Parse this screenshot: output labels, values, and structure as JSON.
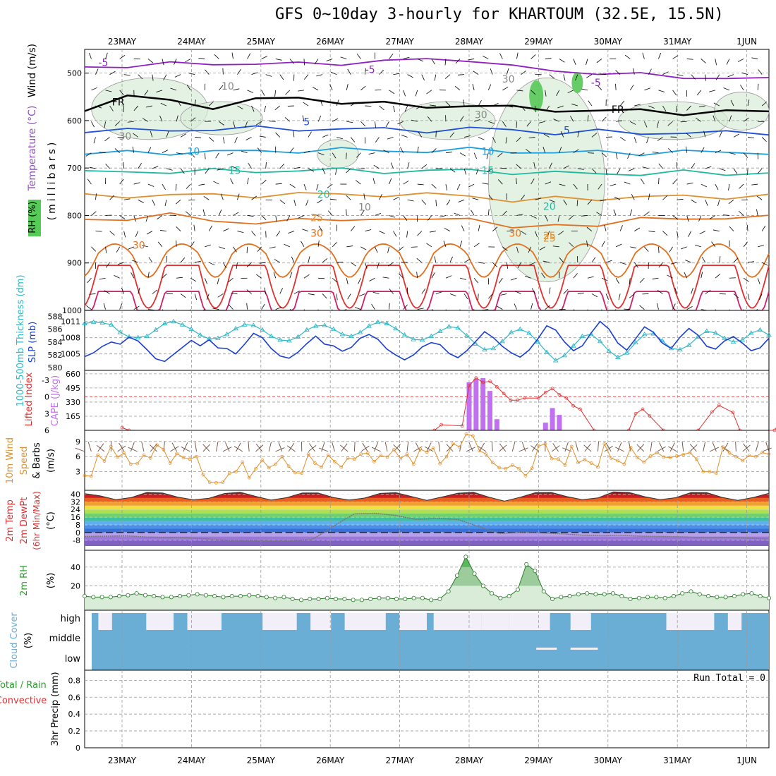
{
  "title": "GFS 0~10day 3-hourly for KHARTOUM (32.5E, 15.5N)",
  "colors": {
    "temp_blue": "#1e4fd6",
    "temp_cyan": "#1aa0e0",
    "temp_teal": "#20b8a0",
    "temp_orange": "#e09030",
    "temp_darkorange": "#e07020",
    "temp_red": "#e03030",
    "temp_magenta": "#d0206a",
    "purple": "#9020c0",
    "slp": "#1a3fd0",
    "thickness": "#30b8c8",
    "cape": "#c070f0",
    "lifted": "#e03030",
    "wind10": "#e0902a",
    "rh": "#2aa02a",
    "cloud": "#6aaed6"
  },
  "chart_data": [
    {
      "type": "line",
      "name": "upper-air-section",
      "ylabel": "(millibars)",
      "side_labels": [
        "Wind (m/s)",
        "Temperature (°C)",
        "RH (%)"
      ],
      "yticks": [
        "500",
        "600",
        "700",
        "800",
        "900",
        "1000"
      ],
      "ylim": [
        450,
        1000
      ],
      "contour_labels": [
        "-5",
        "-5",
        "-5",
        "FR",
        "FR",
        "5",
        "5",
        "10",
        "10",
        "15",
        "15",
        "20",
        "20",
        "25",
        "25",
        "30",
        "30",
        "25",
        "30",
        "10",
        "30",
        "30",
        "10",
        "30"
      ],
      "series": [
        {
          "name": "-5C",
          "level_mb": [
            487,
            484,
            482,
            479,
            480,
            482,
            478,
            475,
            472,
            470,
            488,
            495,
            499,
            505,
            507,
            511,
            514
          ]
        },
        {
          "name": "FR",
          "level_mb": [
            575,
            548,
            560,
            570,
            557,
            552,
            560,
            566,
            570,
            568,
            574,
            576,
            581,
            579,
            583,
            583,
            580
          ]
        },
        {
          "name": "5C",
          "level_mb": [
            620,
            622,
            620,
            618,
            617,
            617,
            618,
            619,
            620,
            618,
            620,
            625,
            624,
            626,
            625,
            627,
            625
          ]
        },
        {
          "name": "10C",
          "level_mb": [
            670,
            668,
            667,
            666,
            665,
            663,
            662,
            663,
            664,
            662,
            664,
            668,
            667,
            668,
            666,
            668,
            666
          ]
        },
        {
          "name": "15C",
          "level_mb": [
            710,
            708,
            707,
            707,
            706,
            705,
            705,
            706,
            707,
            705,
            708,
            712,
            711,
            712,
            710,
            711,
            710
          ]
        },
        {
          "name": "20C",
          "level_mb": [
            760,
            758,
            757,
            758,
            757,
            756,
            755,
            756,
            758,
            756,
            770,
            765,
            763,
            762,
            760,
            760,
            760
          ]
        },
        {
          "name": "25C",
          "level_mb": [
            810,
            805,
            800,
            810,
            815,
            812,
            806,
            808,
            812,
            800,
            830,
            820,
            818,
            810,
            805,
            805,
            805
          ]
        },
        {
          "name": "30C",
          "level_mb": [
            870,
            860,
            855,
            865,
            875,
            870,
            862,
            865,
            870,
            860,
            895,
            875,
            870,
            860,
            855,
            855,
            855
          ]
        }
      ]
    },
    {
      "type": "line",
      "name": "slp-thickness",
      "ylabel_left": "1000-500mb Thickness (dm)",
      "ylabel_right": "SLP (mb)",
      "yticks_left": [
        "580",
        "582",
        "584",
        "586",
        "588"
      ],
      "yticks_right": [
        "1005",
        "1008",
        "1011"
      ],
      "series": [
        {
          "name": "SLP (mb)",
          "values": [
            1004.5,
            1005.2,
            1006.4,
            1007.2,
            1006.8,
            1008.1,
            1007.4,
            1005.8,
            1004.1,
            1003.6,
            1004.9,
            1006.2,
            1007.5,
            1006.5,
            1007.6,
            1006.1,
            1006.0,
            1005.0,
            1006.8,
            1008.8,
            1008.0,
            1006.0,
            1004.6,
            1004.2,
            1005.3,
            1006.9,
            1008.3,
            1006.8,
            1006.5,
            1005.5,
            1006.2,
            1007.9,
            1008.6,
            1007.7,
            1005.9,
            1004.8,
            1003.9,
            1004.8,
            1006.3,
            1007.1,
            1006.7,
            1005.1,
            1004.3,
            1005.6,
            1007.3,
            1009.1,
            1008.0,
            1006.4,
            1005.2,
            1004.4,
            1005.7,
            1007.8,
            1010.2,
            1009.4,
            1007.2,
            1005.6,
            1006.5,
            1008.9,
            1011.0,
            1009.6,
            1007.0,
            1005.7,
            1007.8,
            1010.0,
            1009.0,
            1007.0,
            1006.0,
            1008.1,
            1009.7,
            1008.5,
            1006.4,
            1005.9,
            1007.4,
            1008.2,
            1007.0,
            1005.6,
            1006.1,
            1007.9
          ]
        },
        {
          "name": "1000-500mb Thickness (dm)",
          "values": [
            586.9,
            587.1,
            587.0,
            586.7,
            585.5,
            584.8,
            584.7,
            584.9,
            585.9,
            586.9,
            587.2,
            586.7,
            586.0,
            585.1,
            584.5,
            584.6,
            585.2,
            586.1,
            586.7,
            586.6,
            585.9,
            584.9,
            584.3,
            584.2,
            584.8,
            585.9,
            586.5,
            586.6,
            586.0,
            585.2,
            584.9,
            585.5,
            586.5,
            587.1,
            586.9,
            586.1,
            585.1,
            584.4,
            584.3,
            584.9,
            585.7,
            586.4,
            586.2,
            585.0,
            583.7,
            582.8,
            583.0,
            584.1,
            585.5,
            586.0,
            585.4,
            584.0,
            582.4,
            581.1,
            581.9,
            583.4,
            584.9,
            585.2,
            584.1,
            582.6,
            581.6,
            582.3,
            583.9,
            585.2,
            585.3,
            584.2,
            583.0,
            582.8,
            583.5,
            584.8,
            585.7,
            585.4,
            584.6,
            584.0,
            584.3,
            585.4,
            585.9,
            585.1
          ]
        }
      ]
    },
    {
      "type": "bar",
      "name": "cape-lifted-index",
      "ylabel_left": "Lifted Index",
      "ylabel_right": "CAPE (J/kg)",
      "yticks_left": [
        "-3",
        "0",
        "3",
        "6"
      ],
      "yticks_right": [
        "165",
        "330",
        "495",
        "660"
      ],
      "cape_values": [
        0,
        0,
        0,
        0,
        0,
        0,
        0,
        0,
        0,
        0,
        0,
        0,
        0,
        0,
        0,
        0,
        0,
        0,
        0,
        0,
        0,
        0,
        0,
        0,
        0,
        0,
        0,
        0,
        0,
        0,
        0,
        0,
        0,
        0,
        0,
        0,
        0,
        0,
        0,
        0,
        0,
        0,
        0,
        0,
        0,
        0,
        0,
        0,
        0,
        0,
        0,
        0,
        0,
        0,
        0,
        0,
        0,
        0,
        0,
        0,
        0,
        0,
        0,
        0,
        0,
        0,
        0,
        0,
        0,
        0,
        0,
        0,
        0,
        0,
        0,
        0,
        0,
        0,
        0,
        0,
        0,
        0,
        0,
        0,
        0,
        0,
        0,
        0,
        0,
        0,
        0,
        0,
        0,
        0,
        0,
        0,
        0,
        0,
        0,
        0,
        0,
        0,
        0,
        0,
        0,
        0,
        0,
        0,
        0,
        0,
        0,
        0,
        0,
        0,
        0,
        0,
        0,
        0,
        0,
        0,
        0,
        0,
        0,
        0,
        0,
        0,
        0,
        0,
        0,
        0,
        0,
        0,
        0,
        0,
        0,
        0,
        0,
        0,
        0,
        0,
        0,
        0,
        0,
        0,
        0,
        0,
        0,
        0,
        0,
        0,
        0,
        0,
        0,
        0,
        0,
        0,
        0,
        0,
        0,
        0
      ],
      "cape_bars": [
        [
          5.0,
          560
        ],
        [
          5.1,
          600
        ],
        [
          5.2,
          610
        ],
        [
          5.3,
          460
        ],
        [
          5.4,
          130
        ],
        [
          6.1,
          90
        ],
        [
          6.2,
          260
        ],
        [
          6.3,
          180
        ]
      ],
      "lifted_index": [
        [
          0.0,
          5.5
        ],
        [
          0.1,
          6.2
        ],
        [
          4.5,
          6.2
        ],
        [
          4.6,
          5.0
        ],
        [
          4.9,
          5.2
        ],
        [
          5.0,
          -2.0
        ],
        [
          5.1,
          -3.4
        ],
        [
          5.2,
          -2.6
        ],
        [
          5.3,
          -2.8
        ],
        [
          5.4,
          -1.8
        ],
        [
          5.5,
          -0.6
        ],
        [
          5.6,
          0.6
        ],
        [
          5.7,
          0.6
        ],
        [
          5.8,
          0.2
        ],
        [
          6.0,
          0.2
        ],
        [
          6.1,
          -0.8
        ],
        [
          6.2,
          -1.5
        ],
        [
          6.3,
          -0.4
        ],
        [
          6.4,
          0.2
        ],
        [
          6.5,
          1.6
        ],
        [
          6.6,
          2.2
        ],
        [
          6.8,
          6.1
        ],
        [
          7.3,
          6.2
        ],
        [
          7.4,
          3.0
        ],
        [
          7.5,
          2.2
        ],
        [
          7.6,
          3.4
        ],
        [
          7.8,
          6.2
        ],
        [
          8.3,
          6.2
        ],
        [
          8.5,
          2.7
        ],
        [
          8.6,
          1.5
        ],
        [
          8.8,
          2.8
        ],
        [
          8.9,
          6.2
        ],
        [
          9.4,
          6.2
        ],
        [
          9.6,
          2.3
        ],
        [
          9.7,
          1.8
        ],
        [
          9.8,
          3.2
        ],
        [
          9.9,
          4.0
        ],
        [
          10.0,
          5.2
        ],
        [
          10.25,
          6.2
        ]
      ]
    },
    {
      "type": "line",
      "name": "wind10m",
      "ylabel": "10m Wind Speed & Barbs (m/s)",
      "yticks": [
        "3",
        "6",
        "9"
      ],
      "series": [
        {
          "name": "10m Wind Speed (m/s)",
          "values": [
            2.2,
            2.1,
            6.3,
            5.1,
            8.0,
            5.9,
            6.7,
            4.5,
            4.6,
            6.3,
            5.7,
            8.3,
            7.4,
            4.7,
            6.6,
            5.8,
            5.5,
            6.0,
            2.4,
            0.9,
            0.8,
            0.9,
            2.7,
            3.0,
            4.9,
            1.8,
            3.6,
            5.3,
            3.8,
            4.5,
            6.0,
            4.1,
            2.8,
            2.7,
            6.5,
            4.7,
            3.9,
            6.3,
            5.0,
            3.9,
            5.7,
            5.5,
            6.5,
            6.7,
            5.0,
            6.2,
            5.9,
            7.4,
            5.6,
            6.5,
            4.5,
            7.5,
            6.9,
            7.7,
            4.6,
            6.0,
            8.6,
            7.9,
            10.5,
            10.1,
            7.2,
            6.5,
            4.8,
            3.8,
            3.6,
            4.3,
            3.6,
            2.2,
            3.7,
            8.1,
            8.5,
            5.6,
            5.5,
            4.3,
            8.0,
            4.8,
            5.4,
            4.7,
            3.9,
            8.5,
            5.7,
            5.2,
            4.5,
            7.8,
            5.8,
            4.9,
            6.1,
            6.8,
            5.9,
            5.8,
            6.1,
            6.4,
            6.8,
            5.5,
            3.0,
            3.0,
            2.7,
            7.9,
            6.7,
            6.0,
            5.2,
            6.2,
            6.0,
            6.8,
            6.5
          ]
        }
      ]
    },
    {
      "type": "area",
      "name": "temp-dewpoint",
      "ylabel": "2m Temp 2m DewPt (6hr Min/Max) (°C)",
      "yticks": [
        "-8",
        "0",
        "8",
        "16",
        "24",
        "32",
        "40"
      ],
      "series": [
        {
          "name": "2m Temp max",
          "values": [
            40.5,
            38.2,
            34.3,
            36.5,
            41.8,
            41.2,
            36.9,
            34.1,
            35.8,
            40.7,
            42.0,
            37.7,
            33.9,
            36.4,
            41.3,
            41.3,
            36.5,
            33.9,
            35.9,
            40.8,
            41.6,
            37.6,
            33.6,
            37.1,
            41.0,
            42.0,
            36.9,
            32.8,
            36.8,
            41.6,
            41.8,
            37.5,
            34.3,
            36.1,
            42.4,
            41.8,
            37.4,
            34.2,
            36.3,
            41.7,
            41.6,
            36.6,
            33.6,
            36.6,
            40.9
          ]
        },
        {
          "name": "2m DewPt",
          "values": [
            -4.0,
            -3.7,
            -3.4,
            -4.6,
            -5.1,
            -5.5,
            -6.8,
            -8.1,
            -8.3,
            -8.6,
            -8.4,
            -7.0,
            6.6,
            19.5,
            20.1,
            17.8,
            13.7,
            14.6,
            13.6,
            6.3,
            -1.0,
            0.1,
            -0.4,
            -1.3,
            -2.8,
            -3.3,
            -3.0,
            -3.8,
            -4.1,
            -4.5,
            -5.4,
            -5.1,
            -5.8,
            -6.8
          ]
        }
      ]
    },
    {
      "type": "line",
      "name": "rh2m",
      "ylabel": "2m RH (%)",
      "yticks": [
        "20",
        "40"
      ],
      "series": [
        {
          "name": "2m RH (%)",
          "values": [
            9,
            8,
            8,
            8,
            9,
            10,
            12,
            10,
            9,
            8,
            8,
            9,
            10,
            11,
            10,
            9,
            8,
            9,
            9,
            10,
            9,
            8,
            7,
            8,
            6,
            5,
            6,
            6,
            7,
            6,
            6,
            5,
            5,
            6,
            7,
            7,
            6,
            6,
            7,
            7,
            5,
            6,
            14,
            31,
            51,
            33,
            20,
            12,
            7,
            9,
            16,
            43,
            36,
            14,
            6,
            8,
            9,
            11,
            12,
            11,
            11,
            12,
            9,
            6,
            7,
            8,
            8,
            7,
            9,
            12,
            14,
            11,
            9,
            8,
            8,
            9,
            11,
            12,
            9,
            7
          ]
        }
      ]
    },
    {
      "type": "bar",
      "name": "cloud-cover",
      "ylabel": "Cloud Cover (%)",
      "yticks": [
        "high",
        "middle",
        "low"
      ],
      "high_cover": [
        80,
        78,
        0,
        0,
        0,
        0,
        0,
        0,
        5,
        5,
        5,
        5,
        0,
        0,
        0,
        0,
        0,
        0,
        0,
        0,
        0,
        0,
        0,
        0,
        0,
        0,
        0,
        0,
        0,
        0,
        0,
        0,
        0,
        0,
        0,
        0,
        0,
        0,
        0,
        0,
        0,
        0,
        0,
        0,
        0,
        0,
        0,
        0,
        0,
        0,
        0,
        0,
        0,
        0,
        0,
        0,
        0,
        0,
        0,
        0,
        0,
        0,
        0,
        0,
        0,
        0,
        0,
        0,
        0,
        0,
        0,
        0,
        0,
        0,
        0,
        0,
        0,
        0,
        0,
        0
      ]
    },
    {
      "type": "bar",
      "name": "precip",
      "ylabel": "3hr Precip (mm)",
      "legend": [
        "Total / Rain",
        "Convective"
      ],
      "yticks": [
        "0",
        "0.2",
        "0.4",
        "0.6",
        "0.8"
      ],
      "annotation": "Run Total = 0",
      "values": []
    }
  ],
  "x_axis": {
    "dates": [
      "23MAY",
      "24MAY",
      "25MAY",
      "26MAY",
      "27MAY",
      "28MAY",
      "29MAY",
      "30MAY",
      "31MAY",
      "1JUN"
    ]
  }
}
